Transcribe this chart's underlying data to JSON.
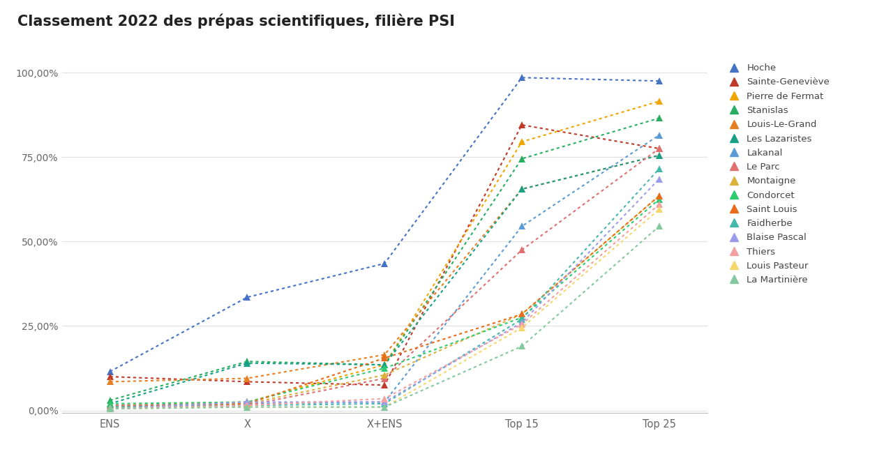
{
  "title": "Classement 2022 des prépas scientifiques, filière PSI",
  "x_labels": [
    "ENS",
    "X",
    "X+ENS",
    "Top 15",
    "Top 25"
  ],
  "series": [
    {
      "name": "Hoche",
      "color": "#4472c4",
      "values": [
        0.115,
        0.335,
        0.435,
        0.985,
        0.975
      ]
    },
    {
      "name": "Sainte-Geneviève",
      "color": "#c0392b",
      "values": [
        0.1,
        0.085,
        0.075,
        0.845,
        0.775
      ]
    },
    {
      "name": "Pierre de Fermat",
      "color": "#f0a500",
      "values": [
        0.015,
        0.025,
        0.135,
        0.795,
        0.915
      ]
    },
    {
      "name": "Stanislas",
      "color": "#27ae60",
      "values": [
        0.03,
        0.145,
        0.135,
        0.745,
        0.865
      ]
    },
    {
      "name": "Louis-Le-Grand",
      "color": "#e67e22",
      "values": [
        0.085,
        0.095,
        0.165,
        0.655,
        0.755
      ]
    },
    {
      "name": "Les Lazaristes",
      "color": "#16a085",
      "values": [
        0.02,
        0.14,
        0.135,
        0.655,
        0.755
      ]
    },
    {
      "name": "Lakanal",
      "color": "#5b9bd5",
      "values": [
        0.015,
        0.02,
        0.025,
        0.545,
        0.815
      ]
    },
    {
      "name": "Le Parc",
      "color": "#e07070",
      "values": [
        0.015,
        0.015,
        0.095,
        0.475,
        0.775
      ]
    },
    {
      "name": "Montaigne",
      "color": "#dbb13b",
      "values": [
        0.01,
        0.02,
        0.105,
        0.285,
        0.635
      ]
    },
    {
      "name": "Condorcet",
      "color": "#2ecc71",
      "values": [
        0.02,
        0.025,
        0.125,
        0.275,
        0.625
      ]
    },
    {
      "name": "Saint Louis",
      "color": "#e86b1a",
      "values": [
        0.01,
        0.02,
        0.155,
        0.285,
        0.635
      ]
    },
    {
      "name": "Faidherbe",
      "color": "#45b8ac",
      "values": [
        0.01,
        0.015,
        0.02,
        0.27,
        0.715
      ]
    },
    {
      "name": "Blaise Pascal",
      "color": "#9b9bed",
      "values": [
        0.005,
        0.025,
        0.025,
        0.26,
        0.685
      ]
    },
    {
      "name": "Thiers",
      "color": "#f4a0a0",
      "values": [
        0.005,
        0.015,
        0.035,
        0.255,
        0.61
      ]
    },
    {
      "name": "Louis Pasteur",
      "color": "#f5d76e",
      "values": [
        0.005,
        0.01,
        0.01,
        0.245,
        0.595
      ]
    },
    {
      "name": "La Martinière",
      "color": "#82c99e",
      "values": [
        0.005,
        0.01,
        0.01,
        0.19,
        0.545
      ]
    }
  ],
  "ytick_labels": [
    "0,00%",
    "25,00%",
    "50,00%",
    "75,00%",
    "100,00%"
  ],
  "ytick_values": [
    0.0,
    0.25,
    0.5,
    0.75,
    1.0
  ],
  "background_color": "#ffffff",
  "grid_color": "#e0e0e0"
}
